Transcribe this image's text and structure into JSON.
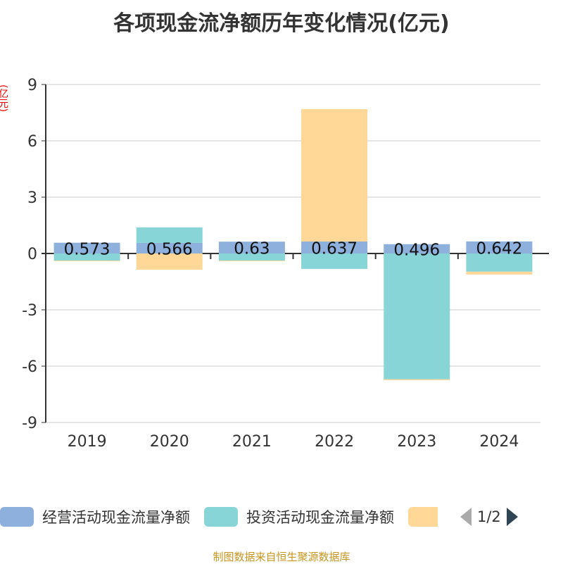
{
  "chart_data": {
    "type": "bar",
    "stacked": true,
    "title": "各项现金流净额历年变化情况(亿元)",
    "ylabel": "(亿元)",
    "categories": [
      "2019",
      "2020",
      "2021",
      "2022",
      "2023",
      "2024"
    ],
    "ylim": [
      -9,
      9
    ],
    "yticks": [
      9,
      6,
      3,
      0,
      -3,
      -6,
      -9
    ],
    "grid": true,
    "series": [
      {
        "name": "经营活动现金流量净额",
        "color": "#8eb0dc",
        "values": [
          0.573,
          0.566,
          0.63,
          0.637,
          0.496,
          0.642
        ],
        "labels": [
          "0.573",
          "0.566",
          "0.63",
          "0.637",
          "0.496",
          "0.642"
        ]
      },
      {
        "name": "投资活动现金流量净额",
        "color": "#88d5d8",
        "values": [
          -0.38,
          0.82,
          -0.38,
          -0.82,
          -6.7,
          -0.97
        ]
      },
      {
        "name": "",
        "color": "#ffd897",
        "values": [
          -0.02,
          -0.86,
          -0.02,
          7.05,
          -0.05,
          -0.15
        ]
      }
    ],
    "legend_position": "bottom"
  },
  "legend": {
    "page": "1/2"
  },
  "source": "制图数据来自恒生聚源数据库"
}
